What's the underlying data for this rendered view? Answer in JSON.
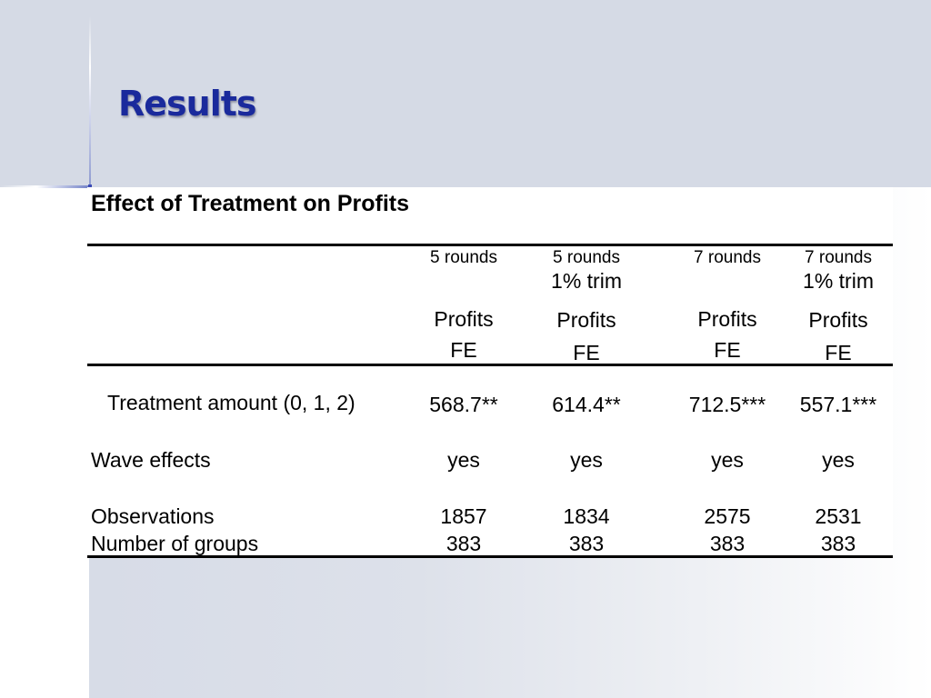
{
  "slide": {
    "title": "Results"
  },
  "table": {
    "title": "Effect of Treatment on Profits",
    "columns": [
      {
        "rounds": "5 rounds",
        "trim": "",
        "dep": "Profits",
        "model": "FE"
      },
      {
        "rounds": "5 rounds",
        "trim": "1% trim",
        "dep": "Profits",
        "model": "FE"
      },
      {
        "rounds": "7 rounds",
        "trim": "",
        "dep": "Profits",
        "model": "FE"
      },
      {
        "rounds": "7 rounds",
        "trim": "1% trim",
        "dep": "Profits",
        "model": "FE"
      }
    ],
    "rows": [
      {
        "label": "Treatment amount (0, 1, 2)",
        "values": [
          "568.7**",
          "614.4**",
          "712.5***",
          "557.1***"
        ]
      },
      {
        "label": "Wave effects",
        "values": [
          "yes",
          "yes",
          "yes",
          "yes"
        ]
      },
      {
        "label": "Observations",
        "values": [
          "1857",
          "1834",
          "2575",
          "2531"
        ]
      },
      {
        "label": "Number of groups",
        "values": [
          "383",
          "383",
          "383",
          "383"
        ]
      }
    ]
  }
}
